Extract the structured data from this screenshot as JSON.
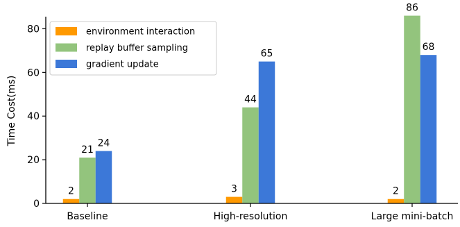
{
  "chart_data": {
    "type": "bar",
    "title": "",
    "xlabel": "",
    "ylabel": "Time Cost(ms)",
    "categories": [
      "Baseline",
      "High-resolution",
      "Large mini-batch"
    ],
    "series": [
      {
        "name": "environment interaction",
        "values": [
          2,
          3,
          2
        ],
        "color": "#ff9900"
      },
      {
        "name": "replay buffer sampling",
        "values": [
          21,
          44,
          86
        ],
        "color": "#93c47d"
      },
      {
        "name": "gradient update",
        "values": [
          24,
          65,
          68
        ],
        "color": "#3c78d8"
      }
    ],
    "ylim": [
      0,
      90
    ],
    "yticks": [
      0,
      20,
      40,
      60,
      80
    ],
    "grid": false,
    "legend": "top-left",
    "data_labels": true
  }
}
